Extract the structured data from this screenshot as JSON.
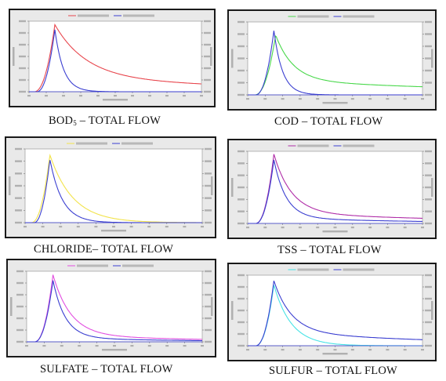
{
  "chart_data": [
    {
      "type": "line",
      "caption": {
        "main": "BOD",
        "sub": "5",
        "rest": " – TOTAL FLOW"
      },
      "series": [
        {
          "color": "#e8474e",
          "peak": 0.15,
          "peakVal": 0.95,
          "rise": 0.04,
          "decay": 0.18,
          "tail": 0.22,
          "tailRate": 0.35
        },
        {
          "color": "#3b3fd1",
          "peak": 0.15,
          "peakVal": 0.88,
          "rise": 0.035,
          "decay": 0.05,
          "tail": 0.0,
          "tailRate": 1.0
        }
      ],
      "legend_color": "#c44"
    },
    {
      "type": "line",
      "caption": {
        "main": "COD – TOTAL FLOW",
        "sub": "",
        "rest": ""
      },
      "series": [
        {
          "color": "#49d84b",
          "peak": 0.16,
          "peakVal": 0.82,
          "rise": 0.04,
          "decay": 0.1,
          "tail": 0.2,
          "tailRate": 0.28
        },
        {
          "color": "#3b3fd1",
          "peak": 0.15,
          "peakVal": 0.88,
          "rise": 0.035,
          "decay": 0.05,
          "tail": 0.0,
          "tailRate": 1.0
        }
      ],
      "legend_color": "#44c"
    },
    {
      "type": "line",
      "caption": {
        "main": "CHLORIDE– TOTAL FLOW",
        "sub": "",
        "rest": ""
      },
      "series": [
        {
          "color": "#f2e34a",
          "peak": 0.14,
          "peakVal": 0.92,
          "rise": 0.035,
          "decay": 0.13,
          "tail": 0.0,
          "tailRate": 1.0
        },
        {
          "color": "#3b3fd1",
          "peak": 0.14,
          "peakVal": 0.86,
          "rise": 0.03,
          "decay": 0.07,
          "tail": 0.0,
          "tailRate": 1.0
        }
      ],
      "legend_color": "#cc4"
    },
    {
      "type": "line",
      "caption": {
        "main": "TSS – TOTAL FLOW",
        "sub": "",
        "rest": ""
      },
      "series": [
        {
          "color": "#b02ea8",
          "peak": 0.15,
          "peakVal": 0.96,
          "rise": 0.035,
          "decay": 0.1,
          "tail": 0.15,
          "tailRate": 0.35
        },
        {
          "color": "#3b3fd1",
          "peak": 0.15,
          "peakVal": 0.88,
          "rise": 0.035,
          "decay": 0.07,
          "tail": 0.08,
          "tailRate": 0.5
        }
      ],
      "legend_color": "#a3a"
    },
    {
      "type": "line",
      "caption": {
        "main": "SULFATE – TOTAL FLOW",
        "sub": "",
        "rest": ""
      },
      "series": [
        {
          "color": "#e24fe0",
          "peak": 0.15,
          "peakVal": 0.95,
          "rise": 0.035,
          "decay": 0.1,
          "tail": 0.1,
          "tailRate": 0.5
        },
        {
          "color": "#3b3fd1",
          "peak": 0.15,
          "peakVal": 0.87,
          "rise": 0.035,
          "decay": 0.07,
          "tail": 0.06,
          "tailRate": 0.6
        }
      ],
      "legend_color": "#d4d"
    },
    {
      "type": "line",
      "caption": {
        "main": "SULFUR – TOTAL FLOW",
        "sub": "",
        "rest": ""
      },
      "series": [
        {
          "color": "#48e3e6",
          "peak": 0.15,
          "peakVal": 0.86,
          "rise": 0.035,
          "decay": 0.1,
          "tail": 0.0,
          "tailRate": 1.0
        },
        {
          "color": "#3b3fd1",
          "peak": 0.15,
          "peakVal": 0.92,
          "rise": 0.035,
          "decay": 0.1,
          "tail": 0.2,
          "tailRate": 0.4
        }
      ],
      "legend_color": "#4cc"
    }
  ]
}
